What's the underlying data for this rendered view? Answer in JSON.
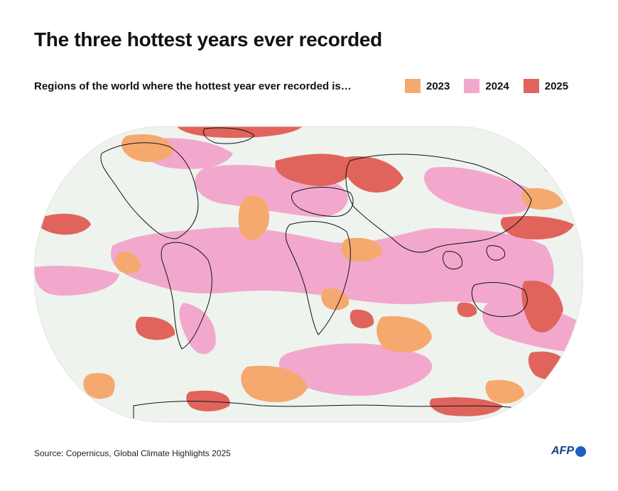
{
  "title": "The three hottest years ever recorded",
  "subtitle": "Regions of the world where the hottest year ever recorded is…",
  "legend": [
    {
      "label": "2023",
      "color": "#f5a96e"
    },
    {
      "label": "2024",
      "color": "#f2a8cd"
    },
    {
      "label": "2025",
      "color": "#e0645c"
    }
  ],
  "map": {
    "ocean_color": "#eef3ee",
    "coast_color": "#111111",
    "projection": "Equal Earth"
  },
  "source": "Source: Copernicus, Global Climate Highlights 2025",
  "logo": {
    "text": "AFP",
    "dot_color": "#1f5fbf",
    "icon": "afp-logo-icon"
  }
}
